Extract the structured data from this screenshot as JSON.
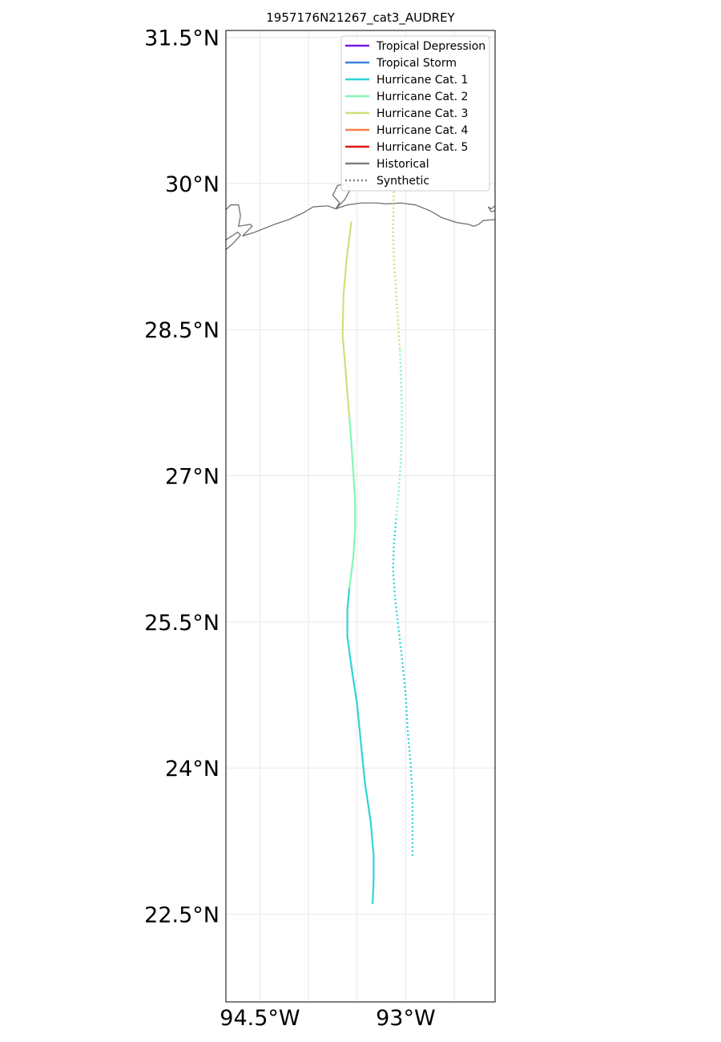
{
  "chart_data": {
    "type": "map-track",
    "title": "1957176N21267_cat3_AUDREY",
    "x_ticks": [
      {
        "value": -94.5,
        "label": "94.5°W"
      },
      {
        "value": -93.0,
        "label": "93°W"
      }
    ],
    "y_ticks": [
      {
        "value": 31.5,
        "label": "31.5°N"
      },
      {
        "value": 30.0,
        "label": "30°N"
      },
      {
        "value": 28.5,
        "label": "28.5°N"
      },
      {
        "value": 27.0,
        "label": "27°N"
      },
      {
        "value": 25.5,
        "label": "25.5°N"
      },
      {
        "value": 24.0,
        "label": "24°N"
      },
      {
        "value": 22.5,
        "label": "22.5°N"
      }
    ],
    "xlim": [
      -94.85,
      -92.08
    ],
    "ylim": [
      21.6,
      31.57
    ],
    "grid": true,
    "legend_position": "top-right",
    "legend": [
      {
        "label": "Tropical Depression",
        "color": "#7b16e6",
        "style": "solid"
      },
      {
        "label": "Tropical Storm",
        "color": "#3a82e0",
        "style": "solid"
      },
      {
        "label": "Hurricane Cat. 1",
        "color": "#2fd4d4",
        "style": "solid"
      },
      {
        "label": "Hurricane Cat. 2",
        "color": "#82f7b4",
        "style": "solid"
      },
      {
        "label": "Hurricane Cat. 3",
        "color": "#cfdf7c",
        "style": "solid"
      },
      {
        "label": "Hurricane Cat. 4",
        "color": "#f7804a",
        "style": "solid"
      },
      {
        "label": "Hurricane Cat. 5",
        "color": "#e01414",
        "style": "solid"
      },
      {
        "label": "Historical",
        "color": "#808080",
        "style": "solid"
      },
      {
        "label": "Synthetic",
        "color": "#808080",
        "style": "dotted"
      }
    ],
    "tracks": [
      {
        "kind": "historical",
        "segments": [
          {
            "category": "Hurricane Cat. 1",
            "color": "#2fd4d4",
            "points": [
              [
                -93.34,
                22.61
              ],
              [
                -93.33,
                22.85
              ],
              [
                -93.33,
                23.1
              ],
              [
                -93.36,
                23.45
              ],
              [
                -93.42,
                23.85
              ],
              [
                -93.46,
                24.25
              ],
              [
                -93.5,
                24.65
              ],
              [
                -93.56,
                25.05
              ],
              [
                -93.6,
                25.35
              ],
              [
                -93.6,
                25.62
              ],
              [
                -93.58,
                25.85
              ]
            ]
          },
          {
            "category": "Hurricane Cat. 2",
            "color": "#82f7b4",
            "points": [
              [
                -93.58,
                25.85
              ],
              [
                -93.54,
                26.15
              ],
              [
                -93.52,
                26.45
              ],
              [
                -93.52,
                26.75
              ],
              [
                -93.54,
                27.05
              ],
              [
                -93.56,
                27.35
              ],
              [
                -93.58,
                27.6
              ]
            ]
          },
          {
            "category": "Hurricane Cat. 3",
            "color": "#cfdf7c",
            "points": [
              [
                -93.58,
                27.6
              ],
              [
                -93.6,
                27.85
              ],
              [
                -93.62,
                28.1
              ],
              [
                -93.65,
                28.45
              ],
              [
                -93.64,
                28.85
              ],
              [
                -93.61,
                29.2
              ],
              [
                -93.56,
                29.6
              ]
            ]
          }
        ]
      },
      {
        "kind": "synthetic",
        "segments": [
          {
            "category": "Hurricane Cat. 1",
            "color": "#2fd4d4",
            "points": [
              [
                -92.93,
                23.1
              ],
              [
                -92.93,
                23.4
              ],
              [
                -92.93,
                23.7
              ],
              [
                -92.95,
                24.05
              ],
              [
                -92.98,
                24.4
              ],
              [
                -93.0,
                24.75
              ],
              [
                -93.03,
                25.05
              ],
              [
                -93.07,
                25.4
              ],
              [
                -93.11,
                25.75
              ],
              [
                -93.13,
                26.05
              ],
              [
                -93.12,
                26.3
              ],
              [
                -93.1,
                26.55
              ]
            ]
          },
          {
            "category": "Hurricane Cat. 2",
            "color": "#82f7b4",
            "points": [
              [
                -93.1,
                26.55
              ],
              [
                -93.07,
                26.85
              ],
              [
                -93.05,
                27.15
              ],
              [
                -93.04,
                27.45
              ],
              [
                -93.04,
                27.75
              ],
              [
                -93.05,
                28.05
              ],
              [
                -93.06,
                28.3
              ]
            ]
          },
          {
            "category": "Hurricane Cat. 3",
            "color": "#cfdf7c",
            "points": [
              [
                -93.06,
                28.3
              ],
              [
                -93.08,
                28.6
              ],
              [
                -93.1,
                28.9
              ],
              [
                -93.12,
                29.2
              ],
              [
                -93.13,
                29.5
              ],
              [
                -93.12,
                29.95
              ]
            ]
          }
        ]
      }
    ],
    "coastline": [
      [
        [
          -94.85,
          29.42
        ],
        [
          -94.73,
          29.5
        ],
        [
          -94.7,
          29.47
        ],
        [
          -94.78,
          29.38
        ],
        [
          -94.85,
          29.32
        ]
      ],
      [
        [
          -94.85,
          29.73
        ],
        [
          -94.8,
          29.78
        ],
        [
          -94.72,
          29.78
        ],
        [
          -94.7,
          29.67
        ],
        [
          -94.72,
          29.56
        ],
        [
          -94.6,
          29.58
        ],
        [
          -94.58,
          29.56
        ],
        [
          -94.64,
          29.5
        ],
        [
          -94.68,
          29.46
        ],
        [
          -94.55,
          29.5
        ],
        [
          -94.35,
          29.58
        ],
        [
          -94.2,
          29.63
        ],
        [
          -94.05,
          29.7
        ],
        [
          -93.95,
          29.76
        ],
        [
          -93.8,
          29.77
        ],
        [
          -93.72,
          29.74
        ],
        [
          -93.68,
          29.8
        ],
        [
          -93.75,
          29.88
        ],
        [
          -93.7,
          29.98
        ],
        [
          -93.6,
          30.0
        ],
        [
          -93.58,
          29.92
        ],
        [
          -93.63,
          29.83
        ],
        [
          -93.72,
          29.74
        ],
        [
          -93.6,
          29.78
        ],
        [
          -93.45,
          29.8
        ],
        [
          -93.3,
          29.8
        ],
        [
          -93.2,
          29.79
        ],
        [
          -93.05,
          29.8
        ],
        [
          -92.9,
          29.78
        ],
        [
          -92.75,
          29.72
        ],
        [
          -92.63,
          29.65
        ],
        [
          -92.48,
          29.6
        ],
        [
          -92.35,
          29.58
        ],
        [
          -92.3,
          29.56
        ],
        [
          -92.25,
          29.58
        ],
        [
          -92.2,
          29.62
        ],
        [
          -92.08,
          29.63
        ]
      ],
      [
        [
          -92.08,
          29.77
        ],
        [
          -92.12,
          29.74
        ],
        [
          -92.15,
          29.76
        ],
        [
          -92.12,
          29.71
        ],
        [
          -92.08,
          29.72
        ]
      ]
    ]
  }
}
